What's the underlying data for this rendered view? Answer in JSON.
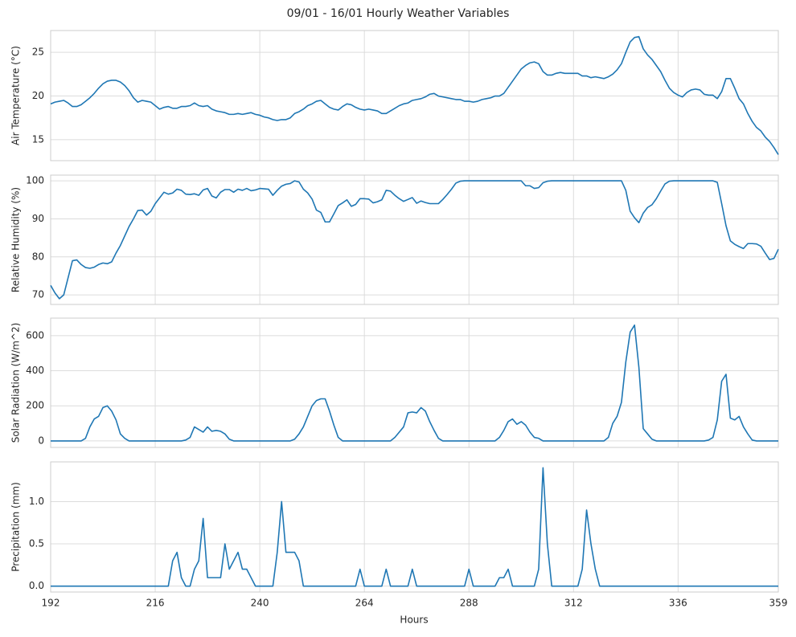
{
  "chart_data": {
    "type": "line",
    "title": "09/01 - 16/01 Hourly Weather Variables",
    "xlabel": "Hours",
    "xlim": [
      192,
      359
    ],
    "xticks": [
      192,
      216,
      240,
      264,
      288,
      312,
      336,
      359
    ],
    "grid": true,
    "x": [
      192,
      193,
      194,
      195,
      196,
      197,
      198,
      199,
      200,
      201,
      202,
      203,
      204,
      205,
      206,
      207,
      208,
      209,
      210,
      211,
      212,
      213,
      214,
      215,
      216,
      217,
      218,
      219,
      220,
      221,
      222,
      223,
      224,
      225,
      226,
      227,
      228,
      229,
      230,
      231,
      232,
      233,
      234,
      235,
      236,
      237,
      238,
      239,
      240,
      241,
      242,
      243,
      244,
      245,
      246,
      247,
      248,
      249,
      250,
      251,
      252,
      253,
      254,
      255,
      256,
      257,
      258,
      259,
      260,
      261,
      262,
      263,
      264,
      265,
      266,
      267,
      268,
      269,
      270,
      271,
      272,
      273,
      274,
      275,
      276,
      277,
      278,
      279,
      280,
      281,
      282,
      283,
      284,
      285,
      286,
      287,
      288,
      289,
      290,
      291,
      292,
      293,
      294,
      295,
      296,
      297,
      298,
      299,
      300,
      301,
      302,
      303,
      304,
      305,
      306,
      307,
      308,
      309,
      310,
      311,
      312,
      313,
      314,
      315,
      316,
      317,
      318,
      319,
      320,
      321,
      322,
      323,
      324,
      325,
      326,
      327,
      328,
      329,
      330,
      331,
      332,
      333,
      334,
      335,
      336,
      337,
      338,
      339,
      340,
      341,
      342,
      343,
      344,
      345,
      346,
      347,
      348,
      349,
      350,
      351,
      352,
      353,
      354,
      355,
      356,
      357,
      358,
      359
    ],
    "panels": [
      {
        "ylabel": "Air Temperature (°C)",
        "color": "#1f77b4",
        "ylim": [
          12.6,
          27.5
        ],
        "yticks": [
          15,
          20,
          25
        ],
        "values": [
          19.1,
          19.3,
          19.4,
          19.5,
          19.2,
          18.8,
          18.8,
          19.0,
          19.4,
          19.8,
          20.3,
          20.9,
          21.4,
          21.7,
          21.8,
          21.8,
          21.6,
          21.2,
          20.6,
          19.8,
          19.3,
          19.5,
          19.4,
          19.3,
          18.9,
          18.5,
          18.7,
          18.8,
          18.6,
          18.6,
          18.8,
          18.8,
          18.9,
          19.2,
          18.9,
          18.8,
          18.9,
          18.5,
          18.3,
          18.2,
          18.1,
          17.9,
          17.9,
          18.0,
          17.9,
          18.0,
          18.1,
          17.9,
          17.8,
          17.6,
          17.5,
          17.3,
          17.2,
          17.3,
          17.3,
          17.5,
          18.0,
          18.2,
          18.5,
          18.9,
          19.1,
          19.4,
          19.5,
          19.1,
          18.7,
          18.5,
          18.4,
          18.8,
          19.1,
          19.0,
          18.7,
          18.5,
          18.4,
          18.5,
          18.4,
          18.3,
          18.0,
          18.0,
          18.3,
          18.6,
          18.9,
          19.1,
          19.2,
          19.5,
          19.6,
          19.7,
          19.9,
          20.2,
          20.3,
          20.0,
          19.9,
          19.8,
          19.7,
          19.6,
          19.6,
          19.4,
          19.4,
          19.3,
          19.4,
          19.6,
          19.7,
          19.8,
          20.0,
          20.0,
          20.3,
          21.0,
          21.7,
          22.4,
          23.1,
          23.5,
          23.8,
          23.9,
          23.7,
          22.8,
          22.4,
          22.4,
          22.6,
          22.7,
          22.6,
          22.6,
          22.6,
          22.6,
          22.3,
          22.3,
          22.1,
          22.2,
          22.1,
          22.0,
          22.2,
          22.5,
          23.0,
          23.7,
          25.0,
          26.2,
          26.7,
          26.8,
          25.4,
          24.7,
          24.2,
          23.5,
          22.8,
          21.8,
          20.9,
          20.4,
          20.1,
          19.9,
          20.4,
          20.7,
          20.8,
          20.7,
          20.2,
          20.1,
          20.1,
          19.7,
          20.5,
          22.0,
          22.0,
          20.9,
          19.7,
          19.1,
          18.0,
          17.1,
          16.4,
          16.0,
          15.3,
          14.8,
          14.1,
          13.3
        ]
      },
      {
        "ylabel": "Relative Humidity (%)",
        "color": "#1f77b4",
        "ylim": [
          67.5,
          101.5
        ],
        "yticks": [
          70,
          80,
          90,
          100
        ],
        "values": [
          72.5,
          70.5,
          69,
          70,
          74.5,
          79,
          79.2,
          78,
          77.2,
          77,
          77.3,
          78,
          78.4,
          78.2,
          78.7,
          81,
          83,
          85.5,
          88,
          90,
          92.2,
          92.3,
          91,
          92,
          94,
          95.5,
          97,
          96.5,
          96.8,
          97.8,
          97.5,
          96.5,
          96.4,
          96.6,
          96.2,
          97.6,
          98,
          96,
          95.5,
          97,
          97.7,
          97.7,
          97,
          97.8,
          97.5,
          98,
          97.4,
          97.6,
          98,
          97.9,
          97.8,
          96.2,
          97.5,
          98.6,
          99.1,
          99.3,
          100,
          99.7,
          97.8,
          96.8,
          95.2,
          92.3,
          91.7,
          89.2,
          89.2,
          91.3,
          93.5,
          94.2,
          95,
          93.3,
          93.8,
          95.3,
          95.3,
          95.2,
          94.2,
          94.5,
          95,
          97.5,
          97.3,
          96.2,
          95.3,
          94.6,
          95.1,
          95.6,
          94.1,
          94.7,
          94.3,
          94,
          94,
          94,
          95.1,
          96.4,
          97.8,
          99.4,
          99.9,
          100,
          100,
          100,
          100,
          100,
          100,
          100,
          100,
          100,
          100,
          100,
          100,
          100,
          100,
          98.7,
          98.7,
          98,
          98.2,
          99.5,
          99.9,
          100,
          100,
          100,
          100,
          100,
          100,
          100,
          100,
          100,
          100,
          100,
          100,
          100,
          100,
          100,
          100,
          100,
          97.5,
          92,
          90.3,
          89,
          91.5,
          93,
          93.7,
          95.3,
          97.3,
          99.2,
          99.9,
          100,
          100,
          100,
          100,
          100,
          100,
          100,
          100,
          100,
          100,
          99.6,
          94,
          88.2,
          84.2,
          83.3,
          82.7,
          82.2,
          83.5,
          83.5,
          83.4,
          82.8,
          81,
          79.3,
          79.6,
          82
        ]
      },
      {
        "ylabel": "Solar Radiation (W/m^2)",
        "color": "#1f77b4",
        "ylim": [
          -37,
          700
        ],
        "yticks": [
          0,
          200,
          400,
          600
        ],
        "values": [
          0,
          0,
          0,
          0,
          0,
          0,
          0,
          0,
          15,
          80,
          125,
          140,
          190,
          200,
          170,
          120,
          40,
          15,
          0,
          0,
          0,
          0,
          0,
          0,
          0,
          0,
          0,
          0,
          0,
          0,
          0,
          5,
          20,
          80,
          65,
          50,
          80,
          55,
          60,
          55,
          40,
          10,
          0,
          0,
          0,
          0,
          0,
          0,
          0,
          0,
          0,
          0,
          0,
          0,
          0,
          0,
          10,
          40,
          80,
          140,
          200,
          230,
          240,
          240,
          170,
          90,
          20,
          0,
          0,
          0,
          0,
          0,
          0,
          0,
          0,
          0,
          0,
          0,
          0,
          20,
          50,
          80,
          160,
          165,
          160,
          190,
          170,
          110,
          60,
          15,
          0,
          0,
          0,
          0,
          0,
          0,
          0,
          0,
          0,
          0,
          0,
          0,
          0,
          20,
          60,
          110,
          125,
          95,
          110,
          90,
          50,
          20,
          15,
          0,
          0,
          0,
          0,
          0,
          0,
          0,
          0,
          0,
          0,
          0,
          0,
          0,
          0,
          0,
          20,
          100,
          140,
          220,
          450,
          620,
          660,
          420,
          70,
          40,
          10,
          0,
          0,
          0,
          0,
          0,
          0,
          0,
          0,
          0,
          0,
          0,
          0,
          5,
          20,
          120,
          340,
          380,
          130,
          120,
          140,
          80,
          40,
          5,
          0,
          0,
          0,
          0,
          0,
          0
        ]
      },
      {
        "ylabel": "Precipitation (mm)",
        "color": "#1f77b4",
        "ylim": [
          -0.07,
          1.47
        ],
        "yticks": [
          {
            "value": 0,
            "label": "0.0"
          },
          0.5,
          {
            "value": 1,
            "label": "1.0"
          }
        ],
        "values": [
          0,
          0,
          0,
          0,
          0,
          0,
          0,
          0,
          0,
          0,
          0,
          0,
          0,
          0,
          0,
          0,
          0,
          0,
          0,
          0,
          0,
          0,
          0,
          0,
          0,
          0,
          0,
          0,
          0.3,
          0.4,
          0.1,
          0,
          0,
          0.2,
          0.3,
          0.8,
          0.1,
          0.1,
          0.1,
          0.1,
          0.5,
          0.2,
          0.3,
          0.4,
          0.2,
          0.2,
          0.1,
          0,
          0,
          0,
          0,
          0,
          0.4,
          1.0,
          0.4,
          0.4,
          0.4,
          0.3,
          0,
          0,
          0,
          0,
          0,
          0,
          0,
          0,
          0,
          0,
          0,
          0,
          0,
          0.2,
          0,
          0,
          0,
          0,
          0,
          0.2,
          0,
          0,
          0,
          0,
          0,
          0.2,
          0,
          0,
          0,
          0,
          0,
          0,
          0,
          0,
          0,
          0,
          0,
          0,
          0.2,
          0,
          0,
          0,
          0,
          0,
          0,
          0.1,
          0.1,
          0.2,
          0,
          0,
          0,
          0,
          0,
          0,
          0.2,
          1.4,
          0.5,
          0,
          0,
          0,
          0,
          0,
          0,
          0,
          0.2,
          0.9,
          0.5,
          0.2,
          0,
          0,
          0,
          0,
          0,
          0,
          0,
          0,
          0,
          0,
          0,
          0,
          0,
          0,
          0,
          0,
          0,
          0,
          0,
          0,
          0,
          0,
          0,
          0,
          0,
          0,
          0,
          0,
          0,
          0,
          0,
          0,
          0,
          0,
          0,
          0,
          0,
          0,
          0,
          0,
          0,
          0
        ]
      }
    ]
  }
}
